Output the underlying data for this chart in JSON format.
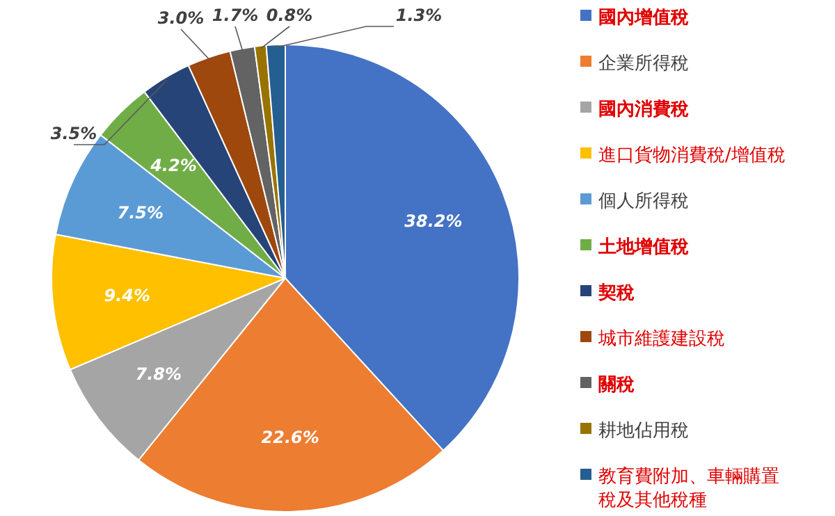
{
  "chart_data": {
    "type": "pie",
    "categories": [
      "國內增值稅",
      "企業所得稅",
      "國內消費稅",
      "進口貨物消費稅/增值稅",
      "個人所得稅",
      "土地增值稅",
      "契稅",
      "城市維護建設稅",
      "關稅",
      "耕地佔用稅",
      "教育費附加、車輛購置稅及其他稅種"
    ],
    "values": [
      38.2,
      22.6,
      7.8,
      9.4,
      7.5,
      4.2,
      3.5,
      3.0,
      1.7,
      0.8,
      1.3
    ],
    "colors": [
      "#4472c4",
      "#ed7d31",
      "#a5a5a5",
      "#ffc000",
      "#5b9bd5",
      "#70ad47",
      "#264478",
      "#9e480e",
      "#636363",
      "#997300",
      "#255e91"
    ],
    "value_labels": [
      "38.2%",
      "22.6%",
      "7.8%",
      "9.4%",
      "7.5%",
      "4.2%",
      "3.5%",
      "3.0%",
      "1.7%",
      "0.8%",
      "1.3%"
    ],
    "legend": "right"
  }
}
